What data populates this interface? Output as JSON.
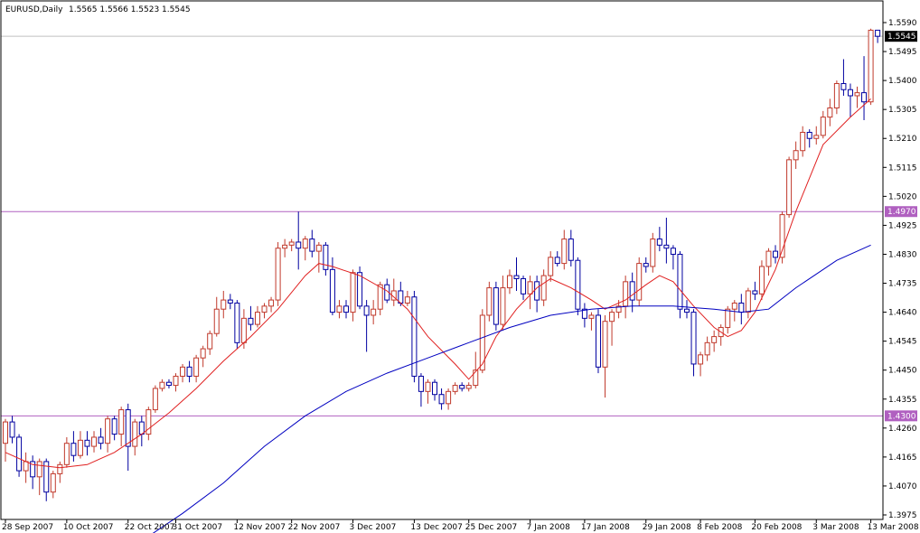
{
  "header": {
    "symbol": "EURUSD,Daily",
    "ohlc": "1.5565 1.5566 1.5523 1.5545"
  },
  "colors": {
    "bull": "#c0392b",
    "bear": "#0000a0",
    "ma_fast": "#e02020",
    "ma_slow": "#0000c0",
    "hline": "#b060c0",
    "current_line": "#c0c0c0",
    "label_bg": "#000000"
  },
  "chart_data": {
    "type": "candlestick",
    "title": "EURUSD,Daily",
    "ylim": [
      1.3975,
      1.559
    ],
    "y_ticks": [
      "1.5590",
      "1.5495",
      "1.5400",
      "1.5305",
      "1.5210",
      "1.5115",
      "1.5020",
      "1.4925",
      "1.4830",
      "1.4735",
      "1.4640",
      "1.4545",
      "1.4450",
      "1.4355",
      "1.4260",
      "1.4165",
      "1.4070",
      "1.3975"
    ],
    "x_labels": [
      {
        "label": "28 Sep 2007",
        "index": 0
      },
      {
        "label": "10 Oct 2007",
        "index": 9
      },
      {
        "label": "22 Oct 2007",
        "index": 18
      },
      {
        "label": "31 Oct 2007",
        "index": 25
      },
      {
        "label": "12 Nov 2007",
        "index": 34
      },
      {
        "label": "22 Nov 2007",
        "index": 42
      },
      {
        "label": "3 Dec 2007",
        "index": 51
      },
      {
        "label": "13 Dec 2007",
        "index": 60
      },
      {
        "label": "25 Dec 2007",
        "index": 68
      },
      {
        "label": "7 Jan 2008",
        "index": 77
      },
      {
        "label": "17 Jan 2008",
        "index": 85
      },
      {
        "label": "29 Jan 2008",
        "index": 94
      },
      {
        "label": "8 Feb 2008",
        "index": 102
      },
      {
        "label": "20 Feb 2008",
        "index": 110
      },
      {
        "label": "3 Mar 2008",
        "index": 119
      },
      {
        "label": "13 Mar 2008",
        "index": 127
      }
    ],
    "horizontal_lines": [
      {
        "value": 1.497,
        "label": "1.4970"
      },
      {
        "value": 1.43,
        "label": "1.4300"
      }
    ],
    "current_price": {
      "value": 1.5545,
      "label": "1.5545"
    },
    "candles": [
      [
        1.421,
        1.429,
        1.415,
        1.428
      ],
      [
        1.428,
        1.43,
        1.421,
        1.423
      ],
      [
        1.423,
        1.424,
        1.41,
        1.412
      ],
      [
        1.412,
        1.418,
        1.408,
        1.415
      ],
      [
        1.415,
        1.417,
        1.406,
        1.41
      ],
      [
        1.41,
        1.416,
        1.404,
        1.415
      ],
      [
        1.415,
        1.416,
        1.402,
        1.405
      ],
      [
        1.405,
        1.412,
        1.403,
        1.411
      ],
      [
        1.411,
        1.415,
        1.408,
        1.414
      ],
      [
        1.414,
        1.423,
        1.413,
        1.421
      ],
      [
        1.421,
        1.425,
        1.415,
        1.417
      ],
      [
        1.417,
        1.425,
        1.416,
        1.422
      ],
      [
        1.422,
        1.425,
        1.417,
        1.42
      ],
      [
        1.42,
        1.425,
        1.418,
        1.423
      ],
      [
        1.423,
        1.426,
        1.419,
        1.421
      ],
      [
        1.421,
        1.43,
        1.418,
        1.429
      ],
      [
        1.429,
        1.43,
        1.422,
        1.424
      ],
      [
        1.424,
        1.433,
        1.42,
        1.432
      ],
      [
        1.432,
        1.434,
        1.412,
        1.42
      ],
      [
        1.42,
        1.429,
        1.417,
        1.428
      ],
      [
        1.428,
        1.43,
        1.42,
        1.424
      ],
      [
        1.424,
        1.433,
        1.422,
        1.432
      ],
      [
        1.432,
        1.44,
        1.431,
        1.439
      ],
      [
        1.439,
        1.442,
        1.438,
        1.441
      ],
      [
        1.441,
        1.442,
        1.439,
        1.44
      ],
      [
        1.44,
        1.444,
        1.438,
        1.443
      ],
      [
        1.443,
        1.447,
        1.441,
        1.446
      ],
      [
        1.446,
        1.448,
        1.441,
        1.443
      ],
      [
        1.443,
        1.45,
        1.441,
        1.449
      ],
      [
        1.449,
        1.453,
        1.446,
        1.452
      ],
      [
        1.452,
        1.458,
        1.45,
        1.457
      ],
      [
        1.457,
        1.469,
        1.456,
        1.465
      ],
      [
        1.465,
        1.471,
        1.462,
        1.468
      ],
      [
        1.468,
        1.47,
        1.465,
        1.467
      ],
      [
        1.467,
        1.468,
        1.452,
        1.454
      ],
      [
        1.454,
        1.465,
        1.452,
        1.462
      ],
      [
        1.462,
        1.466,
        1.458,
        1.46
      ],
      [
        1.46,
        1.466,
        1.459,
        1.464
      ],
      [
        1.464,
        1.467,
        1.462,
        1.466
      ],
      [
        1.466,
        1.469,
        1.464,
        1.468
      ],
      [
        1.468,
        1.487,
        1.466,
        1.485
      ],
      [
        1.485,
        1.488,
        1.482,
        1.486
      ],
      [
        1.486,
        1.488,
        1.484,
        1.487
      ],
      [
        1.487,
        1.497,
        1.478,
        1.485
      ],
      [
        1.485,
        1.489,
        1.481,
        1.488
      ],
      [
        1.488,
        1.491,
        1.482,
        1.484
      ],
      [
        1.484,
        1.487,
        1.477,
        1.486
      ],
      [
        1.486,
        1.487,
        1.476,
        1.478
      ],
      [
        1.478,
        1.482,
        1.463,
        1.464
      ],
      [
        1.464,
        1.468,
        1.462,
        1.466
      ],
      [
        1.466,
        1.468,
        1.462,
        1.464
      ],
      [
        1.464,
        1.478,
        1.461,
        1.477
      ],
      [
        1.477,
        1.479,
        1.465,
        1.466
      ],
      [
        1.466,
        1.468,
        1.451,
        1.463
      ],
      [
        1.463,
        1.468,
        1.46,
        1.465
      ],
      [
        1.465,
        1.474,
        1.463,
        1.473
      ],
      [
        1.473,
        1.475,
        1.467,
        1.468
      ],
      [
        1.468,
        1.475,
        1.466,
        1.471
      ],
      [
        1.471,
        1.474,
        1.466,
        1.467
      ],
      [
        1.467,
        1.471,
        1.466,
        1.469
      ],
      [
        1.469,
        1.471,
        1.441,
        1.443
      ],
      [
        1.443,
        1.444,
        1.433,
        1.438
      ],
      [
        1.438,
        1.442,
        1.434,
        1.441
      ],
      [
        1.441,
        1.442,
        1.435,
        1.437
      ],
      [
        1.437,
        1.439,
        1.432,
        1.434
      ],
      [
        1.434,
        1.439,
        1.432,
        1.438
      ],
      [
        1.438,
        1.441,
        1.437,
        1.44
      ],
      [
        1.44,
        1.441,
        1.438,
        1.439
      ],
      [
        1.439,
        1.441,
        1.438,
        1.44
      ],
      [
        1.44,
        1.451,
        1.439,
        1.445
      ],
      [
        1.445,
        1.465,
        1.444,
        1.463
      ],
      [
        1.463,
        1.474,
        1.461,
        1.472
      ],
      [
        1.472,
        1.474,
        1.458,
        1.46
      ],
      [
        1.46,
        1.476,
        1.458,
        1.472
      ],
      [
        1.472,
        1.478,
        1.47,
        1.476
      ],
      [
        1.476,
        1.482,
        1.471,
        1.475
      ],
      [
        1.475,
        1.476,
        1.468,
        1.47
      ],
      [
        1.47,
        1.476,
        1.465,
        1.474
      ],
      [
        1.474,
        1.476,
        1.464,
        1.468
      ],
      [
        1.468,
        1.478,
        1.466,
        1.476
      ],
      [
        1.476,
        1.484,
        1.474,
        1.482
      ],
      [
        1.482,
        1.484,
        1.479,
        1.48
      ],
      [
        1.48,
        1.491,
        1.478,
        1.488
      ],
      [
        1.488,
        1.491,
        1.479,
        1.481
      ],
      [
        1.481,
        1.482,
        1.463,
        1.465
      ],
      [
        1.465,
        1.467,
        1.459,
        1.462
      ],
      [
        1.462,
        1.464,
        1.458,
        1.463
      ],
      [
        1.463,
        1.465,
        1.444,
        1.446
      ],
      [
        1.446,
        1.463,
        1.436,
        1.461
      ],
      [
        1.461,
        1.465,
        1.453,
        1.464
      ],
      [
        1.464,
        1.468,
        1.462,
        1.466
      ],
      [
        1.466,
        1.476,
        1.462,
        1.474
      ],
      [
        1.474,
        1.477,
        1.464,
        1.468
      ],
      [
        1.468,
        1.482,
        1.466,
        1.48
      ],
      [
        1.48,
        1.482,
        1.477,
        1.479
      ],
      [
        1.479,
        1.49,
        1.477,
        1.488
      ],
      [
        1.488,
        1.492,
        1.484,
        1.486
      ],
      [
        1.486,
        1.495,
        1.48,
        1.485
      ],
      [
        1.485,
        1.486,
        1.478,
        1.483
      ],
      [
        1.483,
        1.484,
        1.462,
        1.465
      ],
      [
        1.465,
        1.468,
        1.462,
        1.464
      ],
      [
        1.464,
        1.465,
        1.443,
        1.447
      ],
      [
        1.447,
        1.451,
        1.443,
        1.45
      ],
      [
        1.45,
        1.456,
        1.448,
        1.454
      ],
      [
        1.454,
        1.458,
        1.451,
        1.456
      ],
      [
        1.456,
        1.46,
        1.453,
        1.459
      ],
      [
        1.459,
        1.466,
        1.457,
        1.465
      ],
      [
        1.465,
        1.468,
        1.461,
        1.467
      ],
      [
        1.467,
        1.47,
        1.46,
        1.464
      ],
      [
        1.464,
        1.472,
        1.462,
        1.471
      ],
      [
        1.471,
        1.474,
        1.468,
        1.47
      ],
      [
        1.47,
        1.481,
        1.468,
        1.479
      ],
      [
        1.479,
        1.485,
        1.476,
        1.484
      ],
      [
        1.484,
        1.486,
        1.48,
        1.482
      ],
      [
        1.482,
        1.497,
        1.48,
        1.496
      ],
      [
        1.496,
        1.515,
        1.495,
        1.514
      ],
      [
        1.514,
        1.52,
        1.511,
        1.517
      ],
      [
        1.517,
        1.525,
        1.515,
        1.523
      ],
      [
        1.523,
        1.524,
        1.518,
        1.521
      ],
      [
        1.521,
        1.525,
        1.519,
        1.522
      ],
      [
        1.522,
        1.53,
        1.521,
        1.528
      ],
      [
        1.528,
        1.534,
        1.525,
        1.531
      ],
      [
        1.531,
        1.54,
        1.529,
        1.539
      ],
      [
        1.539,
        1.547,
        1.535,
        1.537
      ],
      [
        1.537,
        1.539,
        1.528,
        1.535
      ],
      [
        1.535,
        1.538,
        1.531,
        1.536
      ],
      [
        1.536,
        1.548,
        1.527,
        1.533
      ],
      [
        1.533,
        1.557,
        1.532,
        1.5565
      ],
      [
        1.5565,
        1.5566,
        1.5523,
        1.5545
      ]
    ],
    "ma_fast": [
      [
        0,
        1.418
      ],
      [
        4,
        1.414
      ],
      [
        8,
        1.413
      ],
      [
        12,
        1.414
      ],
      [
        16,
        1.418
      ],
      [
        20,
        1.424
      ],
      [
        24,
        1.431
      ],
      [
        28,
        1.439
      ],
      [
        32,
        1.448
      ],
      [
        36,
        1.456
      ],
      [
        40,
        1.465
      ],
      [
        44,
        1.476
      ],
      [
        46,
        1.48
      ],
      [
        48,
        1.479
      ],
      [
        52,
        1.476
      ],
      [
        56,
        1.471
      ],
      [
        59,
        1.465
      ],
      [
        62,
        1.456
      ],
      [
        66,
        1.447
      ],
      [
        68,
        1.442
      ],
      [
        70,
        1.447
      ],
      [
        72,
        1.456
      ],
      [
        75,
        1.465
      ],
      [
        78,
        1.472
      ],
      [
        80,
        1.475
      ],
      [
        83,
        1.472
      ],
      [
        86,
        1.468
      ],
      [
        88,
        1.465
      ],
      [
        91,
        1.468
      ],
      [
        94,
        1.473
      ],
      [
        96,
        1.476
      ],
      [
        98,
        1.474
      ],
      [
        101,
        1.466
      ],
      [
        104,
        1.459
      ],
      [
        106,
        1.456
      ],
      [
        108,
        1.458
      ],
      [
        110,
        1.464
      ],
      [
        113,
        1.478
      ],
      [
        116,
        1.497
      ],
      [
        120,
        1.519
      ],
      [
        124,
        1.528
      ],
      [
        127,
        1.534
      ]
    ],
    "ma_slow": [
      [
        20,
        1.389
      ],
      [
        26,
        1.398
      ],
      [
        32,
        1.408
      ],
      [
        38,
        1.42
      ],
      [
        44,
        1.43
      ],
      [
        50,
        1.438
      ],
      [
        56,
        1.444
      ],
      [
        62,
        1.449
      ],
      [
        68,
        1.454
      ],
      [
        74,
        1.459
      ],
      [
        80,
        1.463
      ],
      [
        86,
        1.465
      ],
      [
        92,
        1.466
      ],
      [
        98,
        1.466
      ],
      [
        104,
        1.465
      ],
      [
        108,
        1.464
      ],
      [
        112,
        1.465
      ],
      [
        116,
        1.472
      ],
      [
        122,
        1.481
      ],
      [
        127,
        1.486
      ]
    ]
  }
}
